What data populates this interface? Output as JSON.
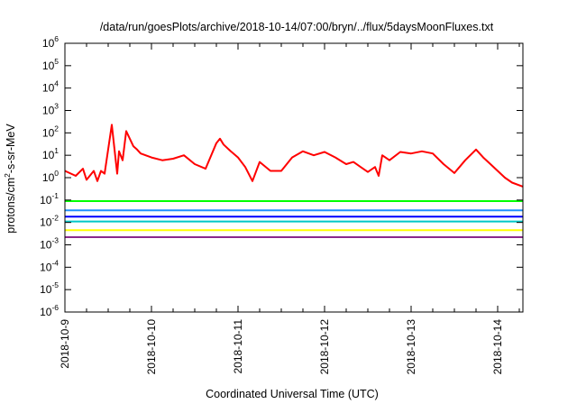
{
  "chart_data": {
    "type": "line",
    "title": "/data/run/goesPlots/archive/2018-10-14/07:00/bryn/../flux/5daysMoonFluxes.txt",
    "xlabel": "Coordinated Universal Time (UTC)",
    "ylabel": {
      "pre": "protons/cm",
      "sup": "2",
      "post": "-s-sr-MeV"
    },
    "yscale": "log",
    "ylim": [
      1e-06,
      1000000.0
    ],
    "yticks": [
      {
        "base": "10",
        "exp": "-6",
        "v": 1e-06
      },
      {
        "base": "10",
        "exp": "-5",
        "v": 1e-05
      },
      {
        "base": "10",
        "exp": "-4",
        "v": 0.0001
      },
      {
        "base": "10",
        "exp": "-3",
        "v": 0.001
      },
      {
        "base": "10",
        "exp": "-2",
        "v": 0.01
      },
      {
        "base": "10",
        "exp": "-1",
        "v": 0.1
      },
      {
        "base": "10",
        "exp": "0",
        "v": 1
      },
      {
        "base": "10",
        "exp": "1",
        "v": 10
      },
      {
        "base": "10",
        "exp": "2",
        "v": 100
      },
      {
        "base": "10",
        "exp": "3",
        "v": 1000
      },
      {
        "base": "10",
        "exp": "4",
        "v": 10000
      },
      {
        "base": "10",
        "exp": "5",
        "v": 100000
      },
      {
        "base": "10",
        "exp": "6",
        "v": 1000000
      }
    ],
    "xlim": [
      "2018-10-09T00:00",
      "2018-10-14T07:00"
    ],
    "xticks": [
      "2018-10-9",
      "2018-10-10",
      "2018-10-11",
      "2018-10-12",
      "2018-10-13",
      "2018-10-14"
    ],
    "xtick_times": [
      "2018-10-09T00:00",
      "2018-10-10T00:00",
      "2018-10-11T00:00",
      "2018-10-12T00:00",
      "2018-10-13T00:00",
      "2018-10-14T00:00"
    ],
    "grid": false,
    "legend": "none",
    "series": [
      {
        "color": "#ff0000",
        "x": [
          "2018-10-09T00:00",
          "2018-10-09T03:00",
          "2018-10-09T05:00",
          "2018-10-09T06:00",
          "2018-10-09T08:00",
          "2018-10-09T09:00",
          "2018-10-09T10:00",
          "2018-10-09T11:00",
          "2018-10-09T13:00",
          "2018-10-09T14:00",
          "2018-10-09T14:30",
          "2018-10-09T15:00",
          "2018-10-09T16:00",
          "2018-10-09T17:00",
          "2018-10-09T19:00",
          "2018-10-09T20:00",
          "2018-10-09T21:00",
          "2018-10-10T00:00",
          "2018-10-10T03:00",
          "2018-10-10T06:00",
          "2018-10-10T09:00",
          "2018-10-10T12:00",
          "2018-10-10T15:00",
          "2018-10-10T18:00",
          "2018-10-10T19:00",
          "2018-10-10T20:00",
          "2018-10-10T22:00",
          "2018-10-11T00:00",
          "2018-10-11T02:00",
          "2018-10-11T04:00",
          "2018-10-11T06:00",
          "2018-10-11T09:00",
          "2018-10-11T12:00",
          "2018-10-11T15:00",
          "2018-10-11T18:00",
          "2018-10-11T21:00",
          "2018-10-12T00:00",
          "2018-10-12T03:00",
          "2018-10-12T06:00",
          "2018-10-12T08:00",
          "2018-10-12T10:00",
          "2018-10-12T12:00",
          "2018-10-12T14:00",
          "2018-10-12T15:00",
          "2018-10-12T16:00",
          "2018-10-12T18:00",
          "2018-10-12T21:00",
          "2018-10-13T00:00",
          "2018-10-13T03:00",
          "2018-10-13T06:00",
          "2018-10-13T09:00",
          "2018-10-13T12:00",
          "2018-10-13T15:00",
          "2018-10-13T18:00",
          "2018-10-13T20:00",
          "2018-10-13T22:00",
          "2018-10-14T00:00",
          "2018-10-14T02:00",
          "2018-10-14T04:00",
          "2018-10-14T07:00"
        ],
        "values": [
          2,
          1.2,
          2.5,
          0.8,
          2,
          0.7,
          2,
          1.5,
          230,
          8,
          1.5,
          15,
          6,
          120,
          25,
          18,
          12,
          8,
          6,
          7,
          10,
          4,
          2.5,
          35,
          55,
          30,
          15,
          8,
          3,
          0.7,
          5,
          2,
          2,
          8,
          15,
          10,
          14,
          8,
          4,
          5,
          3,
          1.8,
          3,
          1.2,
          10,
          6,
          14,
          12,
          15,
          12,
          4,
          1.6,
          6,
          18,
          8,
          4,
          2,
          1,
          0.6,
          0.4
        ]
      },
      {
        "color": "#00ff00",
        "x": [
          "2018-10-09T00:00",
          "2018-10-14T07:00"
        ],
        "values": [
          0.09,
          0.09
        ]
      },
      {
        "color": "#1e90ff",
        "x": [
          "2018-10-09T00:00",
          "2018-10-14T07:00"
        ],
        "values": [
          0.035,
          0.035
        ]
      },
      {
        "color": "#0000ff",
        "x": [
          "2018-10-09T00:00",
          "2018-10-14T07:00"
        ],
        "values": [
          0.018,
          0.018
        ]
      },
      {
        "color": "#00c8c8",
        "x": [
          "2018-10-09T00:00",
          "2018-10-14T07:00"
        ],
        "values": [
          0.011,
          0.011
        ]
      },
      {
        "color": "#ffff00",
        "x": [
          "2018-10-09T00:00",
          "2018-10-14T07:00"
        ],
        "values": [
          0.0045,
          0.0045
        ]
      },
      {
        "color": "#8b2a8b",
        "x": [
          "2018-10-09T00:00",
          "2018-10-14T07:00"
        ],
        "values": [
          0.0022,
          0.0022
        ]
      }
    ]
  }
}
